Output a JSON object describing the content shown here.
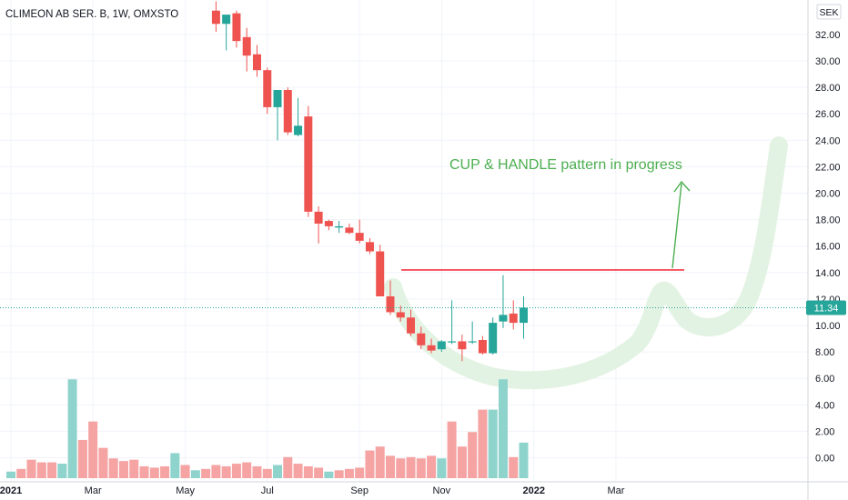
{
  "header": {
    "title": "CLIMEON AB SER. B, 1W, OMXSTO"
  },
  "axis": {
    "unit": "SEK",
    "last_price": "11.34"
  },
  "annotation": {
    "text": "CUP & HANDLE pattern in progress"
  },
  "colors": {
    "up": "#26a69a",
    "down": "#ef5350",
    "vol_up": "#8fd3cd",
    "vol_down": "#f5a3a3",
    "annot": "#4caf50",
    "resistance": "#f23645",
    "cup": "#e3f3e3",
    "grid": "#f0f3fa"
  },
  "chart_data": {
    "type": "candlestick",
    "title": "CLIMEON AB SER. B, 1W, OMXSTO",
    "ylim": [
      -1.5,
      34.0
    ],
    "yticks": [
      0,
      2,
      4,
      6,
      8,
      10,
      12,
      14,
      16,
      18,
      20,
      22,
      24,
      26,
      28,
      30,
      32
    ],
    "ytick_labels": [
      "0.00",
      "2.00",
      "4.00",
      "6.00",
      "8.00",
      "10.00",
      "12.00",
      "14.00",
      "16.00",
      "18.00",
      "20.00",
      "22.00",
      "24.00",
      "26.00",
      "28.00",
      "30.00",
      "32.00"
    ],
    "xtick_labels": [
      "2021",
      "Mar",
      "May",
      "Jul",
      "Sep",
      "Nov",
      "2022",
      "Mar"
    ],
    "xtick_week_index": [
      0,
      8,
      17,
      25,
      34,
      42,
      51,
      59
    ],
    "grid": true,
    "resistance_level": 14.2,
    "last_price": 11.34,
    "candles": [
      {
        "w": 20,
        "o": 33.8,
        "h": 34.5,
        "l": 32.2,
        "c": 32.8
      },
      {
        "w": 21,
        "o": 32.8,
        "h": 33.4,
        "l": 30.8,
        "c": 33.5
      },
      {
        "w": 22,
        "o": 33.6,
        "h": 33.8,
        "l": 31.0,
        "c": 31.5
      },
      {
        "w": 23,
        "o": 31.8,
        "h": 32.5,
        "l": 29.2,
        "c": 30.4
      },
      {
        "w": 24,
        "o": 30.5,
        "h": 31.2,
        "l": 28.8,
        "c": 29.3
      },
      {
        "w": 25,
        "o": 29.3,
        "h": 29.5,
        "l": 26.0,
        "c": 26.5
      },
      {
        "w": 26,
        "o": 26.5,
        "h": 27.8,
        "l": 24.0,
        "c": 27.8
      },
      {
        "w": 27,
        "o": 27.8,
        "h": 28.0,
        "l": 24.4,
        "c": 24.6
      },
      {
        "w": 28,
        "o": 24.4,
        "h": 27.2,
        "l": 24.3,
        "c": 25.1
      },
      {
        "w": 29,
        "o": 25.8,
        "h": 26.6,
        "l": 18.2,
        "c": 18.6
      },
      {
        "w": 30,
        "o": 18.6,
        "h": 19.0,
        "l": 16.2,
        "c": 17.7
      },
      {
        "w": 31,
        "o": 17.9,
        "h": 18.0,
        "l": 17.2,
        "c": 17.5
      },
      {
        "w": 32,
        "o": 17.4,
        "h": 17.9,
        "l": 17.0,
        "c": 17.5
      },
      {
        "w": 33,
        "o": 17.4,
        "h": 17.7,
        "l": 16.9,
        "c": 17.0
      },
      {
        "w": 34,
        "o": 17.0,
        "h": 18.0,
        "l": 16.2,
        "c": 16.4
      },
      {
        "w": 35,
        "o": 16.3,
        "h": 16.6,
        "l": 15.4,
        "c": 15.6
      },
      {
        "w": 36,
        "o": 15.6,
        "h": 16.1,
        "l": 12.2,
        "c": 12.2
      },
      {
        "w": 37,
        "o": 12.2,
        "h": 13.4,
        "l": 10.8,
        "c": 11.0
      },
      {
        "w": 38,
        "o": 11.0,
        "h": 11.5,
        "l": 10.3,
        "c": 10.6
      },
      {
        "w": 39,
        "o": 10.6,
        "h": 11.2,
        "l": 9.2,
        "c": 9.4
      },
      {
        "w": 40,
        "o": 9.4,
        "h": 9.9,
        "l": 8.2,
        "c": 8.5
      },
      {
        "w": 41,
        "o": 8.5,
        "h": 9.0,
        "l": 7.9,
        "c": 8.1
      },
      {
        "w": 42,
        "o": 8.2,
        "h": 8.9,
        "l": 8.0,
        "c": 8.8
      },
      {
        "w": 43,
        "o": 8.8,
        "h": 11.9,
        "l": 8.6,
        "c": 8.8
      },
      {
        "w": 44,
        "o": 8.8,
        "h": 9.3,
        "l": 7.3,
        "c": 8.2
      },
      {
        "w": 45,
        "o": 8.8,
        "h": 10.3,
        "l": 8.6,
        "c": 8.8
      },
      {
        "w": 46,
        "o": 8.9,
        "h": 9.2,
        "l": 7.8,
        "c": 7.9
      },
      {
        "w": 47,
        "o": 7.9,
        "h": 10.6,
        "l": 7.8,
        "c": 10.2
      },
      {
        "w": 48,
        "o": 10.3,
        "h": 13.8,
        "l": 9.8,
        "c": 10.8
      },
      {
        "w": 49,
        "o": 10.9,
        "h": 11.9,
        "l": 9.7,
        "c": 10.2
      },
      {
        "w": 50,
        "o": 10.2,
        "h": 12.2,
        "l": 9.0,
        "c": 11.34
      }
    ],
    "volume": {
      "max_scale_value": 7.5,
      "bars": [
        {
          "w": 0,
          "v": 0.5,
          "up": true
        },
        {
          "w": 1,
          "v": 0.7,
          "up": false
        },
        {
          "w": 2,
          "v": 1.4,
          "up": false
        },
        {
          "w": 3,
          "v": 1.2,
          "up": false
        },
        {
          "w": 4,
          "v": 1.2,
          "up": false
        },
        {
          "w": 5,
          "v": 1.1,
          "up": true
        },
        {
          "w": 6,
          "v": 7.5,
          "up": true
        },
        {
          "w": 7,
          "v": 2.9,
          "up": false
        },
        {
          "w": 8,
          "v": 4.3,
          "up": false
        },
        {
          "w": 9,
          "v": 2.3,
          "up": false
        },
        {
          "w": 10,
          "v": 1.5,
          "up": false
        },
        {
          "w": 11,
          "v": 1.3,
          "up": false
        },
        {
          "w": 12,
          "v": 1.4,
          "up": false
        },
        {
          "w": 13,
          "v": 0.9,
          "up": false
        },
        {
          "w": 14,
          "v": 0.8,
          "up": false
        },
        {
          "w": 15,
          "v": 0.9,
          "up": false
        },
        {
          "w": 16,
          "v": 1.9,
          "up": true
        },
        {
          "w": 17,
          "v": 1.0,
          "up": false
        },
        {
          "w": 18,
          "v": 0.6,
          "up": true
        },
        {
          "w": 19,
          "v": 0.7,
          "up": false
        },
        {
          "w": 20,
          "v": 1.0,
          "up": false
        },
        {
          "w": 21,
          "v": 0.9,
          "up": false
        },
        {
          "w": 22,
          "v": 1.1,
          "up": false
        },
        {
          "w": 23,
          "v": 1.2,
          "up": false
        },
        {
          "w": 24,
          "v": 0.9,
          "up": false
        },
        {
          "w": 25,
          "v": 0.7,
          "up": false
        },
        {
          "w": 26,
          "v": 1.0,
          "up": true
        },
        {
          "w": 27,
          "v": 1.6,
          "up": false
        },
        {
          "w": 28,
          "v": 1.1,
          "up": false
        },
        {
          "w": 29,
          "v": 0.9,
          "up": false
        },
        {
          "w": 30,
          "v": 0.8,
          "up": false
        },
        {
          "w": 31,
          "v": 0.5,
          "up": true
        },
        {
          "w": 32,
          "v": 0.6,
          "up": false
        },
        {
          "w": 33,
          "v": 0.7,
          "up": false
        },
        {
          "w": 34,
          "v": 0.8,
          "up": false
        },
        {
          "w": 35,
          "v": 2.1,
          "up": false
        },
        {
          "w": 36,
          "v": 2.4,
          "up": false
        },
        {
          "w": 37,
          "v": 1.7,
          "up": false
        },
        {
          "w": 38,
          "v": 1.5,
          "up": false
        },
        {
          "w": 39,
          "v": 1.6,
          "up": false
        },
        {
          "w": 40,
          "v": 1.5,
          "up": false
        },
        {
          "w": 41,
          "v": 1.7,
          "up": false
        },
        {
          "w": 42,
          "v": 1.5,
          "up": true
        },
        {
          "w": 43,
          "v": 4.3,
          "up": false
        },
        {
          "w": 44,
          "v": 2.4,
          "up": false
        },
        {
          "w": 45,
          "v": 3.5,
          "up": false
        },
        {
          "w": 46,
          "v": 5.2,
          "up": false
        },
        {
          "w": 47,
          "v": 5.2,
          "up": true
        },
        {
          "w": 48,
          "v": 7.5,
          "up": true
        },
        {
          "w": 49,
          "v": 1.6,
          "up": false
        },
        {
          "w": 50,
          "v": 2.7,
          "up": true
        }
      ]
    }
  }
}
